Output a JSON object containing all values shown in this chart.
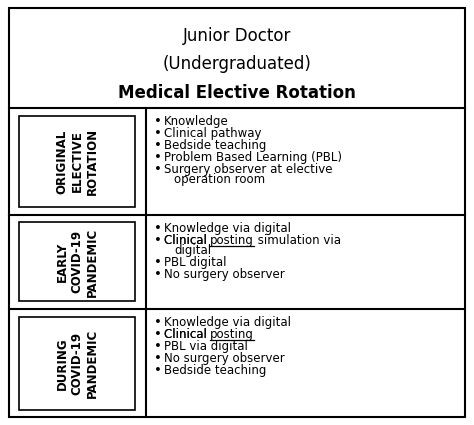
{
  "title_lines": [
    "Junior Doctor",
    "(Undergraduated)",
    "Medical Elective Rotation"
  ],
  "title_bold": [
    false,
    false,
    true
  ],
  "rows": [
    {
      "label_lines": [
        "ORIGINAL",
        "ELECTIVE",
        "ROTATION"
      ],
      "bullets": [
        {
          "text": "Knowledge",
          "underline": null,
          "continuation": null
        },
        {
          "text": "Clinical pathway",
          "underline": null,
          "continuation": null
        },
        {
          "text": "Bedside teaching",
          "underline": null,
          "continuation": null
        },
        {
          "text": "Problem Based Learning (PBL)",
          "underline": null,
          "continuation": null
        },
        {
          "text": "Surgery observer at elective",
          "underline": null,
          "continuation": "operation room"
        }
      ]
    },
    {
      "label_lines": [
        "EARLY",
        "COVID-19",
        "PANDEMIC"
      ],
      "bullets": [
        {
          "text": "Knowledge via digital",
          "underline": null,
          "continuation": null
        },
        {
          "text": "Clinical posting simulation via",
          "underline": "posting",
          "continuation": "digital"
        },
        {
          "text": "PBL digital",
          "underline": null,
          "continuation": null
        },
        {
          "text": "No surgery observer",
          "underline": null,
          "continuation": null
        }
      ]
    },
    {
      "label_lines": [
        "DURING",
        "COVID-19",
        "PANDEMIC"
      ],
      "bullets": [
        {
          "text": "Knowledge via digital",
          "underline": null,
          "continuation": null
        },
        {
          "text": "Clinical posting",
          "underline": "posting",
          "continuation": null
        },
        {
          "text": "PBL via digital",
          "underline": null,
          "continuation": null
        },
        {
          "text": "No surgery observer",
          "underline": null,
          "continuation": null
        },
        {
          "text": "Bedside teaching",
          "underline": null,
          "continuation": null
        }
      ]
    }
  ],
  "bg_color": "#ffffff",
  "border_color": "#000000",
  "text_color": "#000000",
  "title_fontsize": 12,
  "label_fontsize": 8.5,
  "bullet_fontsize": 8.5
}
